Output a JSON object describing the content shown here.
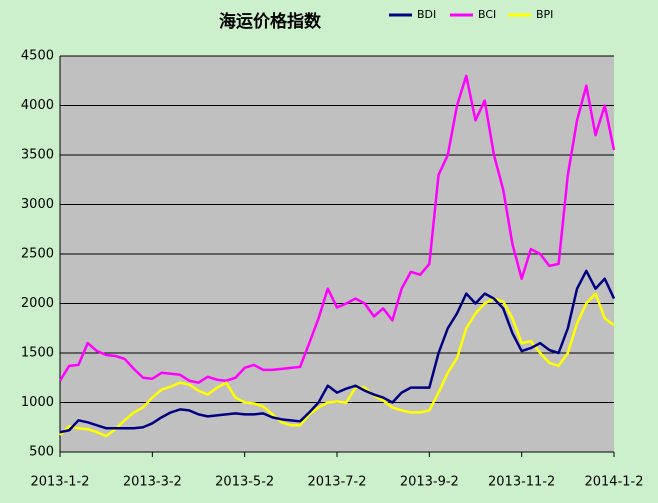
{
  "chart_data": {
    "type": "line",
    "title": "海运价格指数",
    "categories": [
      "2013-1-2",
      null,
      null,
      null,
      null,
      null,
      null,
      null,
      null,
      null,
      "2013-3-2",
      null,
      null,
      null,
      null,
      null,
      null,
      null,
      null,
      null,
      "2013-5-2",
      null,
      null,
      null,
      null,
      null,
      null,
      null,
      null,
      null,
      "2013-7-2",
      null,
      null,
      null,
      null,
      null,
      null,
      null,
      null,
      null,
      "2013-9-2",
      null,
      null,
      null,
      null,
      null,
      null,
      null,
      null,
      null,
      "2013-11-2",
      null,
      null,
      null,
      null,
      null,
      null,
      null,
      null,
      null,
      "2014-1-2"
    ],
    "series": [
      {
        "name": "BDI",
        "color": "#000080",
        "values": [
          700,
          720,
          820,
          800,
          770,
          740,
          740,
          740,
          740,
          750,
          790,
          850,
          900,
          930,
          920,
          880,
          860,
          870,
          880,
          890,
          880,
          880,
          890,
          850,
          830,
          820,
          810,
          900,
          1000,
          1170,
          1100,
          1140,
          1170,
          1120,
          1080,
          1050,
          1000,
          1100,
          1150,
          1150,
          1150,
          1500,
          1750,
          1900,
          2100,
          2000,
          2100,
          2050,
          1950,
          1700,
          1520,
          1550,
          1600,
          1530,
          1500,
          1750,
          2150,
          2330,
          2150,
          2250,
          2050
        ]
      },
      {
        "name": "BCI",
        "color": "#ff00ff",
        "values": [
          1220,
          1370,
          1380,
          1600,
          1520,
          1480,
          1470,
          1440,
          1340,
          1250,
          1240,
          1300,
          1290,
          1280,
          1220,
          1200,
          1260,
          1230,
          1220,
          1250,
          1350,
          1380,
          1330,
          1330,
          1340,
          1350,
          1360,
          1600,
          1850,
          2150,
          1960,
          2000,
          2050,
          2000,
          1870,
          1950,
          1830,
          2150,
          2320,
          2290,
          2400,
          3300,
          3500,
          4000,
          4300,
          3850,
          4050,
          3500,
          3150,
          2600,
          2250,
          2550,
          2500,
          2380,
          2400,
          3300,
          3850,
          4200,
          3700,
          4000,
          3550
        ]
      },
      {
        "name": "BPI",
        "color": "#ffff00",
        "values": [
          670,
          760,
          740,
          730,
          700,
          660,
          730,
          820,
          900,
          950,
          1050,
          1130,
          1160,
          1200,
          1180,
          1120,
          1080,
          1150,
          1200,
          1050,
          1000,
          990,
          960,
          880,
          800,
          770,
          770,
          880,
          950,
          1000,
          1010,
          1000,
          1150,
          1150,
          1070,
          1020,
          950,
          920,
          900,
          900,
          920,
          1100,
          1300,
          1450,
          1750,
          1900,
          2000,
          2050,
          2020,
          1850,
          1600,
          1620,
          1500,
          1400,
          1370,
          1500,
          1800,
          2000,
          2100,
          1850,
          1780
        ]
      }
    ],
    "ylim": [
      500,
      4500
    ],
    "yticks": [
      500,
      1000,
      1500,
      2000,
      2500,
      3000,
      3500,
      4000,
      4500
    ],
    "grid": true,
    "legend": "top-right"
  }
}
